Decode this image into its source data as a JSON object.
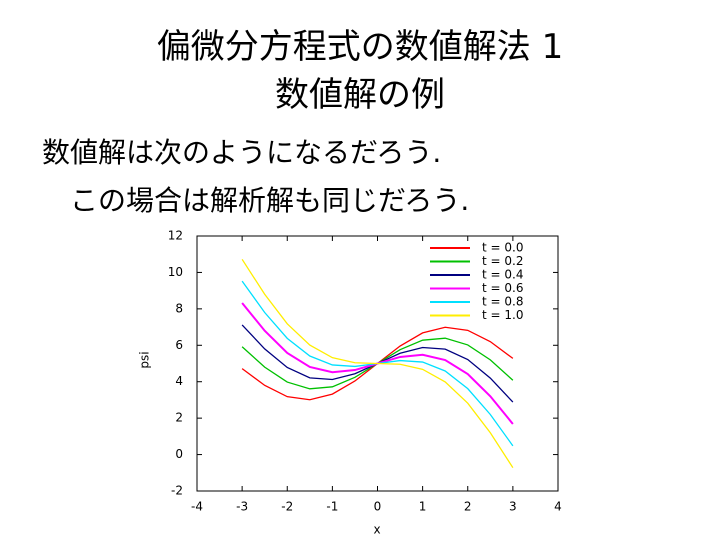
{
  "slide": {
    "title": [
      "偏微分方程式の数値解法 1",
      "数値解の例"
    ],
    "body": [
      "数値解は次のようになるだろう.",
      "この場合は解析解も同じだろう."
    ]
  },
  "chart_data": {
    "type": "line",
    "xlabel": "x",
    "ylabel": "psi",
    "x": [
      -3,
      -2.5,
      -2,
      -1.5,
      -1,
      -0.5,
      0,
      0.5,
      1,
      1.5,
      2,
      2.5,
      3
    ],
    "series": [
      {
        "name": "t = 0.0",
        "color": "#ff0000",
        "values": [
          4.72,
          3.8,
          3.18,
          3.01,
          3.32,
          4.04,
          5,
          5.96,
          6.68,
          6.99,
          6.82,
          6.2,
          5.28
        ]
      },
      {
        "name": "t = 0.2",
        "color": "#00c000",
        "values": [
          5.92,
          4.8,
          3.98,
          3.61,
          3.72,
          4.24,
          5,
          5.76,
          6.28,
          6.39,
          6.02,
          5.2,
          4.08
        ]
      },
      {
        "name": "t = 0.4",
        "color": "#000080",
        "values": [
          7.12,
          5.8,
          4.78,
          4.21,
          4.12,
          4.44,
          5,
          5.56,
          5.88,
          5.79,
          5.22,
          4.2,
          2.88
        ]
      },
      {
        "name": "t = 0.6",
        "color": "#ff00ff",
        "values": [
          8.32,
          6.8,
          5.58,
          4.81,
          4.52,
          4.64,
          5,
          5.36,
          5.48,
          5.19,
          4.42,
          3.2,
          1.68
        ]
      },
      {
        "name": "t = 0.8",
        "color": "#00e0ff",
        "values": [
          9.52,
          7.8,
          6.38,
          5.41,
          4.92,
          4.84,
          5,
          5.16,
          5.08,
          4.59,
          3.62,
          2.2,
          0.48
        ]
      },
      {
        "name": "t = 1.0",
        "color": "#ffee00",
        "values": [
          10.72,
          8.8,
          7.18,
          6.01,
          5.32,
          5.04,
          5,
          4.96,
          4.68,
          3.99,
          2.82,
          1.2,
          -0.72
        ]
      }
    ],
    "xlim": [
      -4,
      4
    ],
    "xticks": [
      -4,
      -3,
      -2,
      -1,
      0,
      1,
      2,
      3,
      4
    ],
    "ylim": [
      -2,
      12
    ],
    "yticks": [
      -2,
      0,
      2,
      4,
      6,
      8,
      10,
      12
    ],
    "legend": "upper-right"
  }
}
